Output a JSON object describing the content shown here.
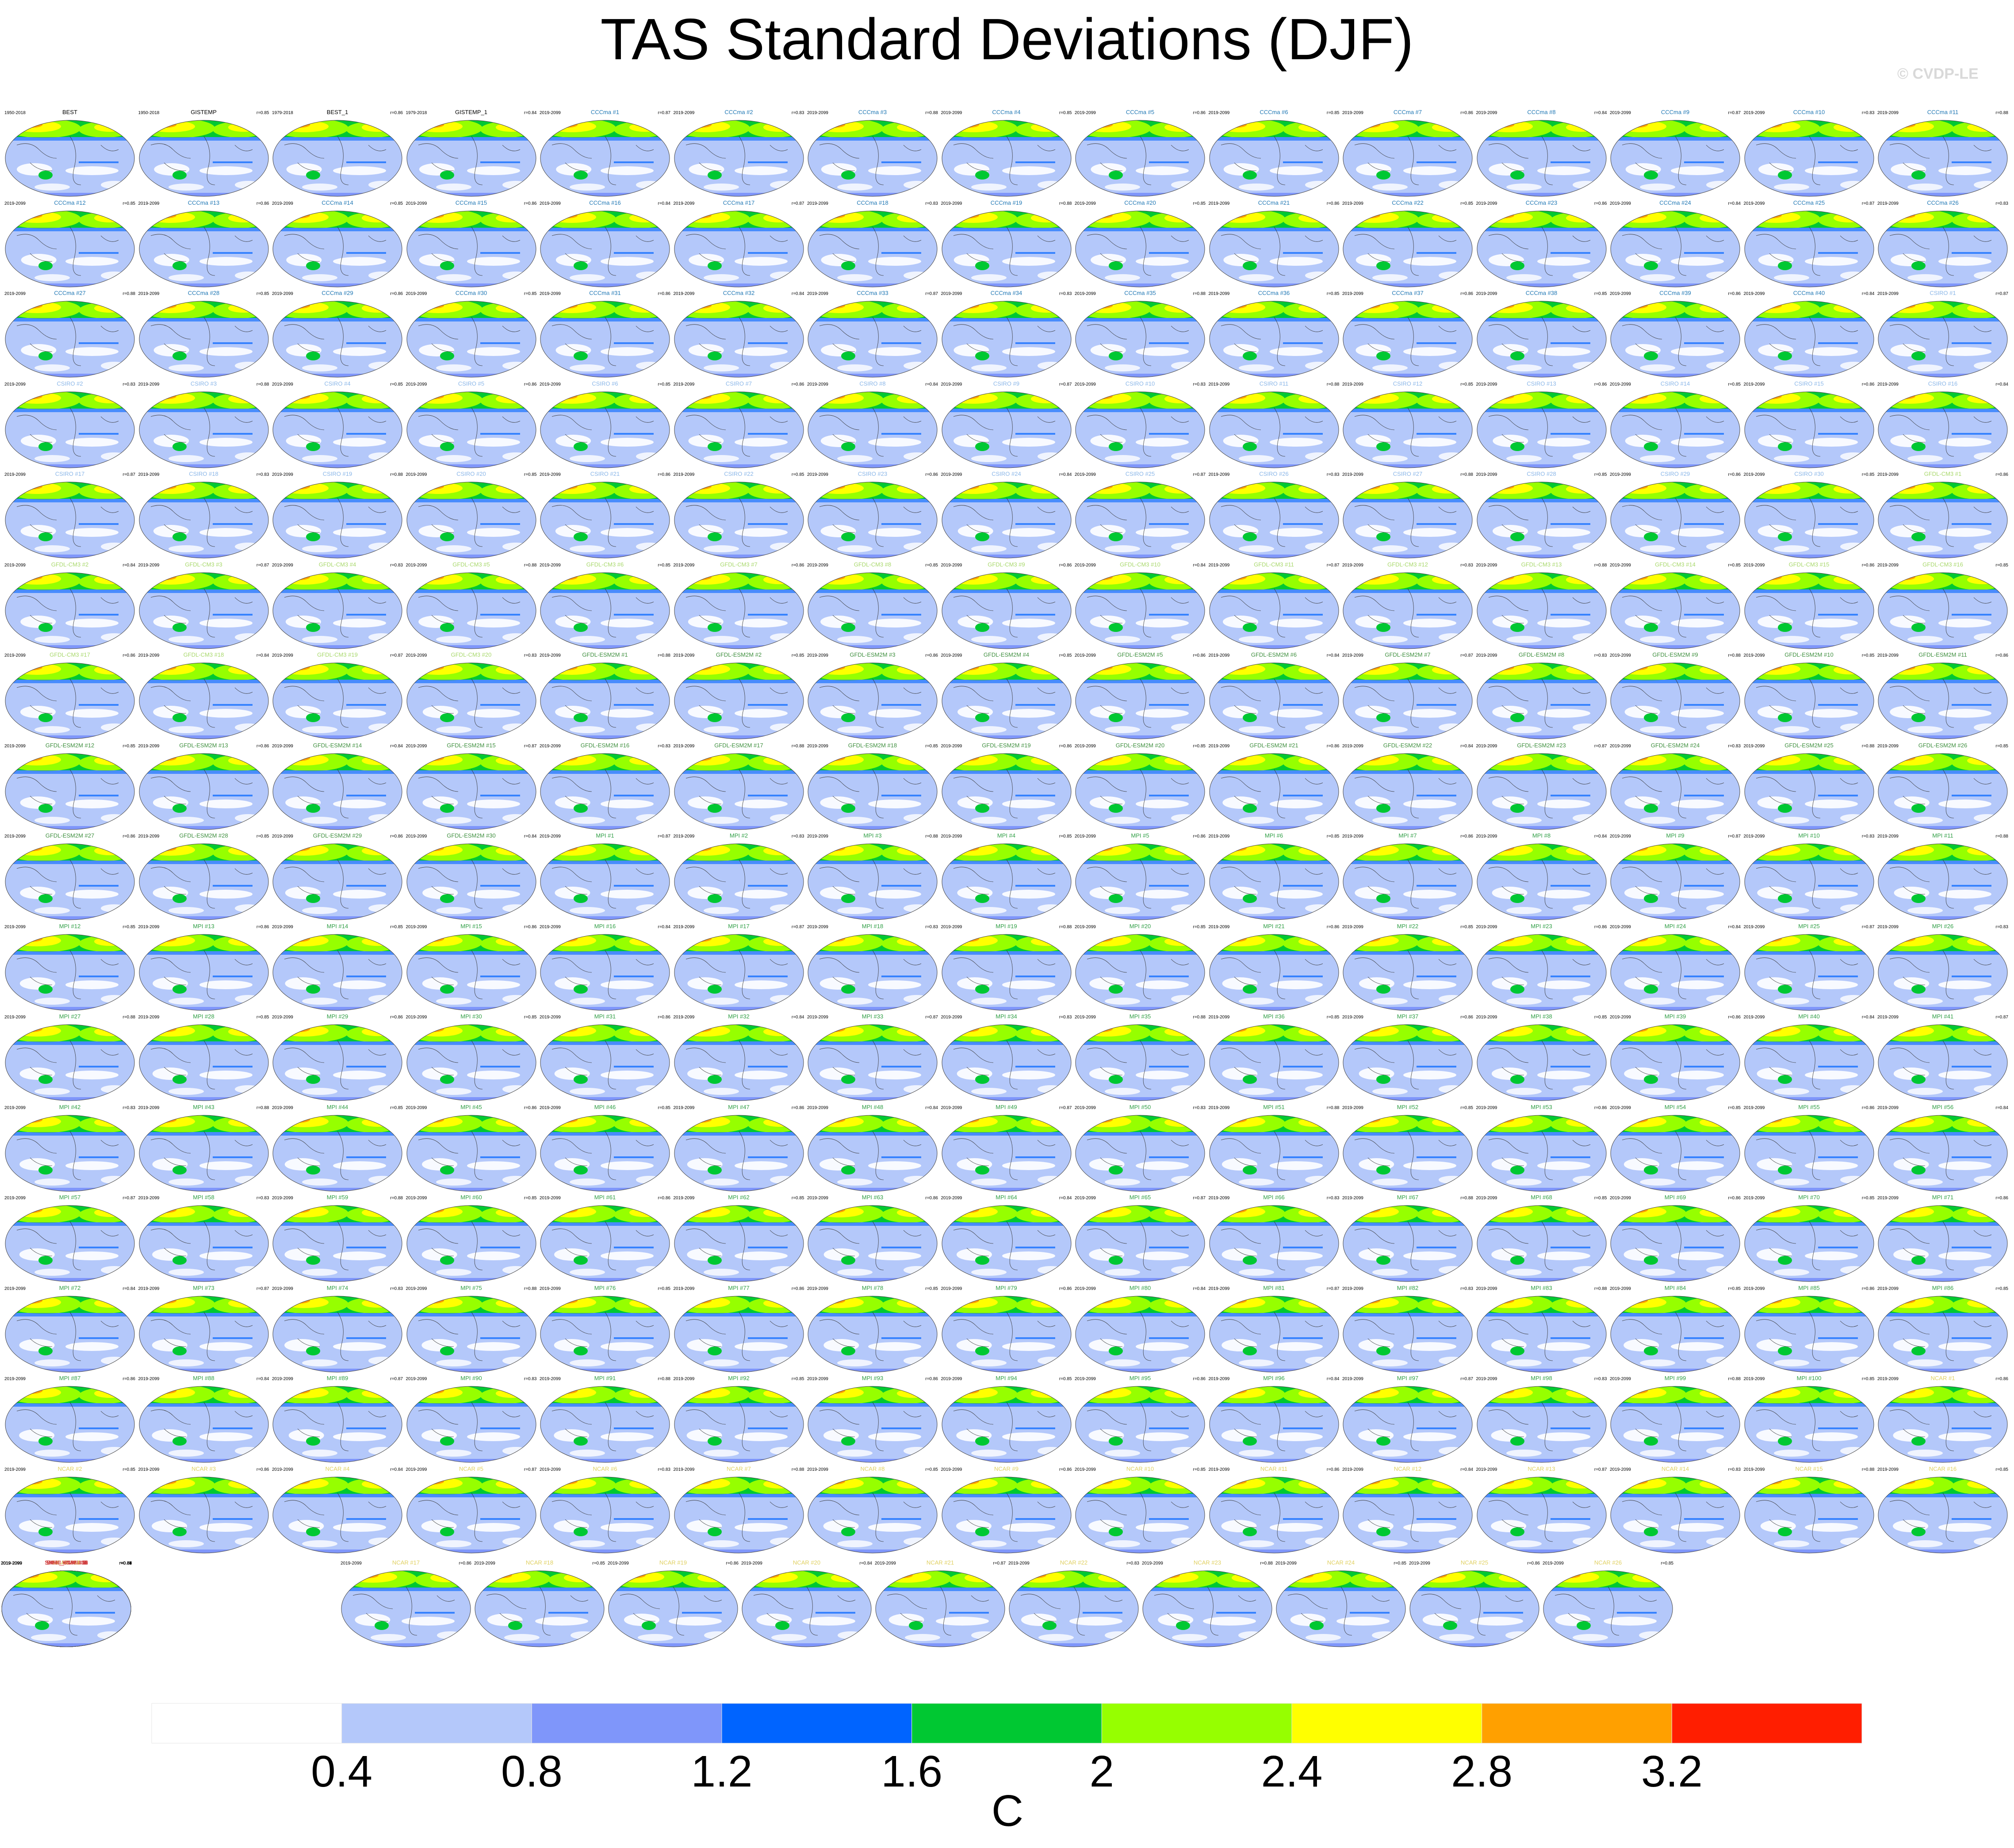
{
  "title": "TAS Standard Deviations (DJF)",
  "credit": "© CVDP-LE",
  "chart_data": {
    "type": "map-panel-grid",
    "title": "TAS Standard Deviations (DJF)",
    "colorbar": {
      "unit": "C",
      "levels": [
        0.4,
        0.8,
        1.2,
        1.6,
        2,
        2.4,
        2.8,
        3.2
      ],
      "tick_labels": [
        "0.4",
        "0.8",
        "1.2",
        "1.6",
        "2",
        "2.4",
        "2.8",
        "3.2"
      ],
      "colors": [
        "#ffffff",
        "#b4c8fa",
        "#7f96fa",
        "#0064ff",
        "#00c832",
        "#96ff00",
        "#ffff00",
        "#ffa000",
        "#ff1e00"
      ]
    },
    "groups": [
      {
        "prefix": "",
        "labels": [
          "BEST",
          "GISTEMP",
          "BEST_1",
          "GISTEMP_1"
        ],
        "years": [
          "1950-2018",
          "1950-2018",
          "1979-2018",
          "1979-2018"
        ],
        "label_color": "#000000"
      },
      {
        "prefix": "CCCma #",
        "count": 40,
        "label_color": "#1f77b4",
        "years": "2019-2099"
      },
      {
        "prefix": "CSIRO #",
        "count": 30,
        "label_color": "#8ab6e8",
        "years": "2019-2099"
      },
      {
        "prefix": "GFDL-CM3 #",
        "count": 20,
        "label_color": "#a8d86b",
        "years": "2019-2099"
      },
      {
        "prefix": "GFDL-ESM2M #",
        "count": 30,
        "label_color": "#3f8f3f",
        "years": "2019-2099"
      },
      {
        "prefix": "MPI #",
        "count": 100,
        "label_color": "#2f9e44",
        "years": "2019-2099"
      },
      {
        "prefix": "NCAR #",
        "count": 40,
        "label_color": "#e0d060",
        "years": "2019-2099"
      },
      {
        "prefix": "SMHI_KNMI #",
        "count": 16,
        "label_color": "#d04040",
        "years": "2019-2099"
      }
    ],
    "pattern_correlations": [
      "r=0.86",
      "r=0.85",
      "r=0.86",
      "r=0.84",
      "r=0.87",
      "r=0.83",
      "r=0.88",
      "r=0.85"
    ]
  }
}
